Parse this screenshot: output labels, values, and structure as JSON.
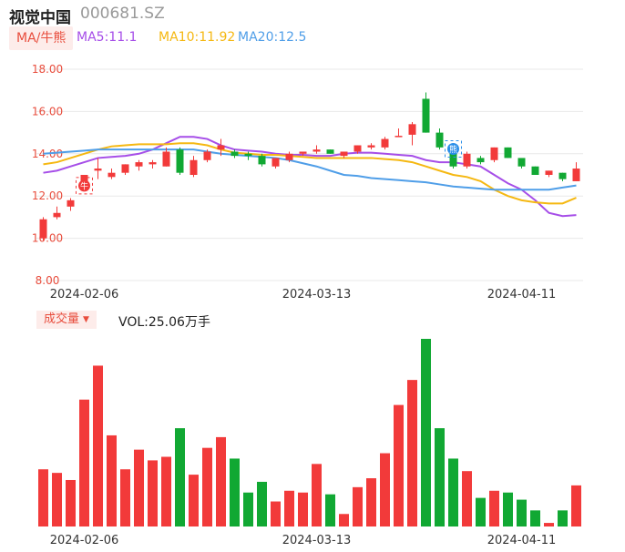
{
  "header": {
    "stock_name": "视觉中国",
    "stock_code": "000681.SZ"
  },
  "ma_legend": {
    "chip": "MA/牛熊",
    "items": [
      {
        "label": "MA5:11.1",
        "color": "#a64ee8"
      },
      {
        "label": "MA10:11.92",
        "color": "#f5b812"
      },
      {
        "label": "MA20:12.5",
        "color": "#4f9ee8"
      }
    ]
  },
  "volume_legend": {
    "chip": "成交量",
    "text": "VOL:25.06万手"
  },
  "colors": {
    "up": "#f23a3a",
    "down": "#11a833",
    "grid": "#e8e8e8"
  },
  "markers": [
    {
      "index": 3,
      "label": "牛",
      "icon": "bull-marker-icon",
      "color": "#f23a3a"
    },
    {
      "index": 30,
      "label": "熊",
      "icon": "bear-marker-icon",
      "color": "#2a8ee8"
    }
  ],
  "chart_data": {
    "type": "candlestick",
    "y_axis": {
      "min": 8,
      "max": 18,
      "ticks": [
        "18.00",
        "16.00",
        "14.00",
        "12.00",
        "10.00",
        "8.00"
      ]
    },
    "x_ticks": [
      {
        "index": 3,
        "label": "2024-02-06"
      },
      {
        "index": 20,
        "label": "2024-03-13"
      },
      {
        "index": 35,
        "label": "2024-04-11"
      }
    ],
    "candles": [
      {
        "o": 10.0,
        "h": 11.0,
        "l": 9.9,
        "c": 10.9
      },
      {
        "o": 11.0,
        "h": 11.5,
        "l": 10.9,
        "c": 11.2
      },
      {
        "o": 11.5,
        "h": 11.9,
        "l": 11.3,
        "c": 11.8
      },
      {
        "o": 12.7,
        "h": 13.0,
        "l": 12.4,
        "c": 13.0
      },
      {
        "o": 13.2,
        "h": 13.8,
        "l": 12.8,
        "c": 13.3
      },
      {
        "o": 12.9,
        "h": 13.3,
        "l": 12.8,
        "c": 13.1
      },
      {
        "o": 13.1,
        "h": 13.5,
        "l": 13.0,
        "c": 13.5
      },
      {
        "o": 13.4,
        "h": 13.7,
        "l": 13.2,
        "c": 13.6
      },
      {
        "o": 13.5,
        "h": 13.7,
        "l": 13.3,
        "c": 13.6
      },
      {
        "o": 13.4,
        "h": 14.3,
        "l": 13.4,
        "c": 14.1
      },
      {
        "o": 14.2,
        "h": 14.3,
        "l": 13.0,
        "c": 13.1
      },
      {
        "o": 13.0,
        "h": 13.9,
        "l": 12.9,
        "c": 13.7
      },
      {
        "o": 13.7,
        "h": 14.2,
        "l": 13.6,
        "c": 14.1
      },
      {
        "o": 14.2,
        "h": 14.7,
        "l": 13.9,
        "c": 14.4
      },
      {
        "o": 14.1,
        "h": 14.2,
        "l": 13.8,
        "c": 13.9
      },
      {
        "o": 14.0,
        "h": 14.1,
        "l": 13.7,
        "c": 13.9
      },
      {
        "o": 13.9,
        "h": 14.0,
        "l": 13.4,
        "c": 13.5
      },
      {
        "o": 13.4,
        "h": 13.8,
        "l": 13.3,
        "c": 13.8
      },
      {
        "o": 13.7,
        "h": 14.1,
        "l": 13.6,
        "c": 14.0
      },
      {
        "o": 14.0,
        "h": 14.1,
        "l": 13.9,
        "c": 14.1
      },
      {
        "o": 14.1,
        "h": 14.4,
        "l": 14.0,
        "c": 14.2
      },
      {
        "o": 14.2,
        "h": 14.2,
        "l": 14.0,
        "c": 14.0
      },
      {
        "o": 13.9,
        "h": 14.1,
        "l": 13.8,
        "c": 14.1
      },
      {
        "o": 14.1,
        "h": 14.4,
        "l": 14.0,
        "c": 14.4
      },
      {
        "o": 14.3,
        "h": 14.5,
        "l": 14.2,
        "c": 14.4
      },
      {
        "o": 14.3,
        "h": 14.8,
        "l": 14.2,
        "c": 14.7
      },
      {
        "o": 14.8,
        "h": 15.2,
        "l": 14.8,
        "c": 14.85
      },
      {
        "o": 14.9,
        "h": 15.5,
        "l": 14.4,
        "c": 15.4
      },
      {
        "o": 16.6,
        "h": 16.9,
        "l": 15.0,
        "c": 15.0
      },
      {
        "o": 15.0,
        "h": 15.2,
        "l": 14.2,
        "c": 14.3
      },
      {
        "o": 14.2,
        "h": 14.4,
        "l": 13.3,
        "c": 13.4
      },
      {
        "o": 13.4,
        "h": 14.1,
        "l": 13.3,
        "c": 14.0
      },
      {
        "o": 13.8,
        "h": 13.9,
        "l": 13.5,
        "c": 13.6
      },
      {
        "o": 13.7,
        "h": 14.3,
        "l": 13.6,
        "c": 14.3
      },
      {
        "o": 14.3,
        "h": 14.3,
        "l": 13.8,
        "c": 13.8
      },
      {
        "o": 13.8,
        "h": 13.8,
        "l": 13.3,
        "c": 13.4
      },
      {
        "o": 13.4,
        "h": 13.4,
        "l": 13.0,
        "c": 13.0
      },
      {
        "o": 13.0,
        "h": 13.2,
        "l": 12.9,
        "c": 13.2
      },
      {
        "o": 13.1,
        "h": 13.1,
        "l": 12.7,
        "c": 12.8
      },
      {
        "o": 12.7,
        "h": 13.6,
        "l": 12.7,
        "c": 13.3
      }
    ],
    "ma5": [
      13.1,
      13.2,
      13.4,
      13.6,
      13.8,
      13.85,
      13.9,
      14.0,
      14.2,
      14.5,
      14.8,
      14.8,
      14.7,
      14.4,
      14.2,
      14.15,
      14.1,
      14.0,
      13.95,
      13.95,
      13.9,
      13.9,
      14.0,
      14.05,
      14.05,
      14.0,
      13.95,
      13.9,
      13.7,
      13.6,
      13.6,
      13.5,
      13.4,
      13.0,
      12.6,
      12.3,
      11.8,
      11.2,
      11.05,
      11.1
    ],
    "ma10": [
      13.5,
      13.6,
      13.8,
      14.0,
      14.2,
      14.35,
      14.4,
      14.45,
      14.45,
      14.45,
      14.5,
      14.5,
      14.4,
      14.2,
      14.05,
      14.0,
      13.95,
      13.95,
      13.9,
      13.85,
      13.8,
      13.8,
      13.8,
      13.8,
      13.8,
      13.75,
      13.7,
      13.6,
      13.4,
      13.2,
      13.0,
      12.9,
      12.7,
      12.3,
      12.0,
      11.8,
      11.7,
      11.65,
      11.65,
      11.92
    ],
    "ma20": [
      14.0,
      14.05,
      14.1,
      14.15,
      14.2,
      14.2,
      14.2,
      14.2,
      14.2,
      14.2,
      14.2,
      14.2,
      14.1,
      14.0,
      13.95,
      13.9,
      13.85,
      13.8,
      13.7,
      13.55,
      13.4,
      13.2,
      13.0,
      12.95,
      12.85,
      12.8,
      12.75,
      12.7,
      12.65,
      12.55,
      12.45,
      12.4,
      12.35,
      12.3,
      12.3,
      12.3,
      12.3,
      12.3,
      12.4,
      12.5
    ],
    "volume": [
      3.2,
      3.0,
      2.6,
      7.1,
      9.0,
      5.1,
      3.2,
      4.3,
      3.7,
      3.9,
      5.5,
      2.9,
      4.4,
      5.0,
      3.8,
      1.9,
      2.5,
      1.4,
      2.0,
      1.9,
      3.5,
      1.8,
      0.7,
      2.2,
      2.7,
      4.1,
      6.8,
      8.2,
      10.5,
      5.5,
      3.8,
      3.1,
      1.6,
      2.0,
      1.9,
      1.5,
      0.9,
      0.2,
      0.9,
      2.3
    ]
  }
}
